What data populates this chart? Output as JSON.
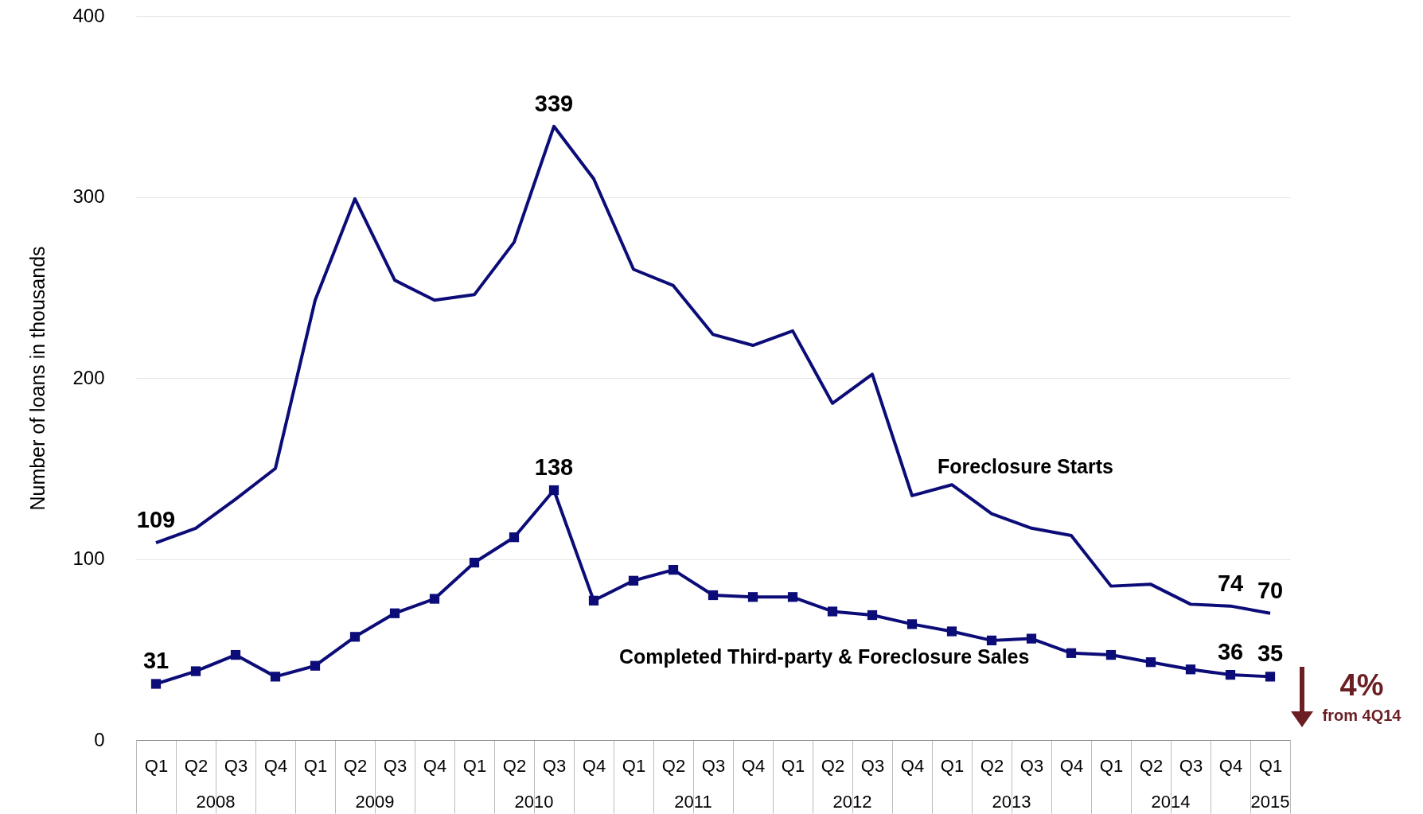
{
  "chart_data": {
    "type": "line",
    "ylabel": "Number of loans in thousands",
    "categories": [
      "Q1",
      "Q2",
      "Q3",
      "Q4",
      "Q1",
      "Q2",
      "Q3",
      "Q4",
      "Q1",
      "Q2",
      "Q3",
      "Q4",
      "Q1",
      "Q2",
      "Q3",
      "Q4",
      "Q1",
      "Q2",
      "Q3",
      "Q4",
      "Q1",
      "Q2",
      "Q3",
      "Q4",
      "Q1",
      "Q2",
      "Q3",
      "Q4",
      "Q1"
    ],
    "series": [
      {
        "name": "Foreclosure Starts",
        "color": "#0c0c78",
        "marker": "none",
        "values": [
          109,
          117,
          133,
          150,
          243,
          299,
          254,
          243,
          246,
          275,
          339,
          310,
          260,
          251,
          224,
          218,
          226,
          186,
          202,
          135,
          141,
          125,
          117,
          113,
          85,
          86,
          75,
          74,
          70
        ],
        "value_labels": [
          "109",
          null,
          null,
          null,
          null,
          null,
          null,
          null,
          null,
          null,
          "339",
          null,
          null,
          null,
          null,
          null,
          null,
          null,
          null,
          null,
          null,
          null,
          null,
          null,
          null,
          null,
          null,
          "74",
          "70"
        ]
      },
      {
        "name": "Completed Third-party & Foreclosure Sales",
        "color": "#0c0c78",
        "marker": "square",
        "values": [
          31,
          38,
          47,
          35,
          41,
          57,
          70,
          78,
          98,
          112,
          138,
          77,
          88,
          94,
          80,
          79,
          79,
          71,
          69,
          64,
          60,
          55,
          56,
          48,
          47,
          43,
          39,
          36,
          35
        ],
        "value_labels": [
          "31",
          null,
          null,
          null,
          null,
          null,
          null,
          null,
          null,
          null,
          "138",
          null,
          null,
          null,
          null,
          null,
          null,
          null,
          null,
          null,
          null,
          null,
          null,
          null,
          null,
          null,
          null,
          "36",
          "35"
        ]
      }
    ],
    "annotations": [
      "2008",
      "2009",
      "2010",
      "2011",
      "2012",
      "2013",
      "2014",
      "2015",
      "4%",
      "from 4Q14"
    ],
    "ylim": [
      0,
      400
    ],
    "yticks": [
      0,
      100,
      200,
      300,
      400
    ],
    "grid": "y",
    "line_style": "solid"
  }
}
